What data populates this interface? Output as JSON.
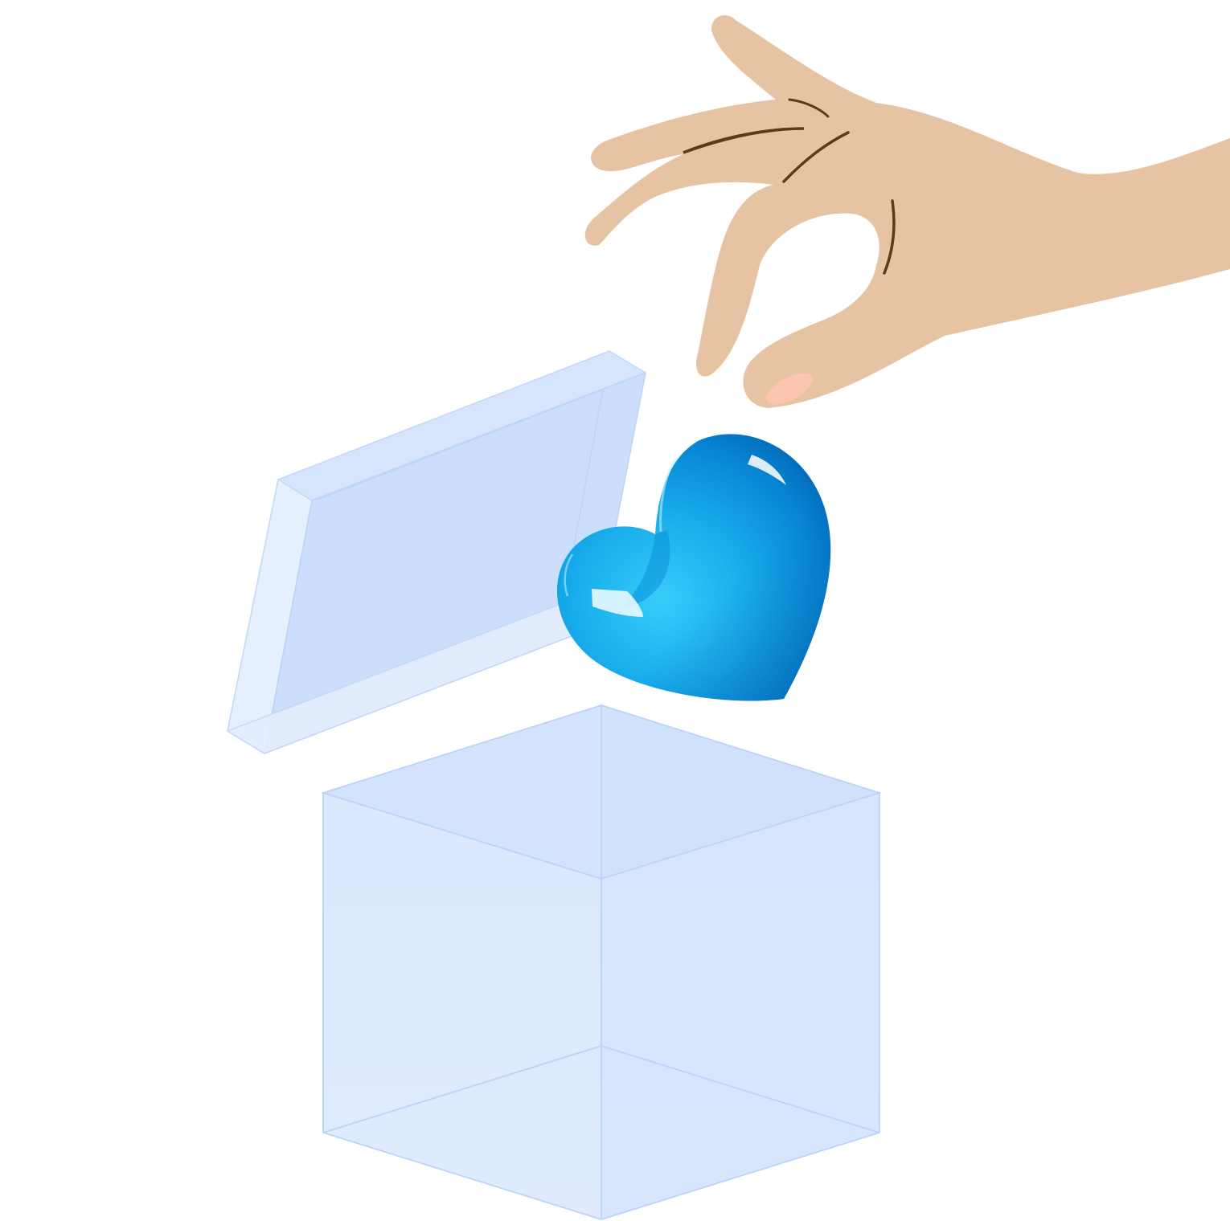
{
  "scene": {
    "background": "#ffffff",
    "colors": {
      "skin": "#e6c4a3",
      "skin_crease": "#5e3a16",
      "fingernail": "#fcc6ae",
      "heart_light": "#32c6f8",
      "heart_mid": "#0ea0e4",
      "heart_dark": "#0068b8",
      "box_back_face": "#cfe0fb",
      "box_front_face": "#dce9fd",
      "box_edge": "#bdd4f7",
      "lid_face": "#cbdefb",
      "lid_side": "#e2ecfe"
    },
    "objects": {
      "hand": {
        "icon": "hand-icon"
      },
      "heart": {
        "icon": "heart-icon"
      },
      "lid": {
        "icon": "box-lid-icon"
      },
      "box": {
        "icon": "open-box-icon"
      }
    }
  }
}
